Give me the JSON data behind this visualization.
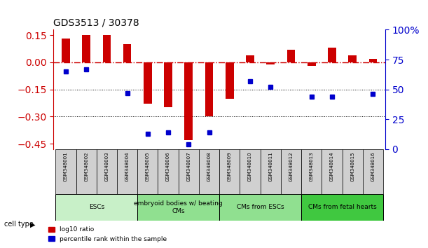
{
  "title": "GDS3513 / 30378",
  "samples": [
    "GSM348001",
    "GSM348002",
    "GSM348003",
    "GSM348004",
    "GSM348005",
    "GSM348006",
    "GSM348007",
    "GSM348008",
    "GSM348009",
    "GSM348010",
    "GSM348011",
    "GSM348012",
    "GSM348013",
    "GSM348014",
    "GSM348015",
    "GSM348016"
  ],
  "log10_ratio": [
    0.13,
    0.15,
    0.15,
    0.1,
    -0.23,
    -0.25,
    -0.43,
    -0.3,
    -0.2,
    0.04,
    -0.01,
    0.07,
    -0.02,
    0.08,
    0.04,
    0.02
  ],
  "percentile_rank": [
    65,
    67,
    null,
    47,
    13,
    14,
    4,
    14,
    null,
    57,
    52,
    null,
    44,
    44,
    null,
    46
  ],
  "cell_type_groups": [
    {
      "label": "ESCs",
      "start": 0,
      "end": 3,
      "color": "#c8f0c8"
    },
    {
      "label": "embryoid bodies w/ beating\nCMs",
      "start": 4,
      "end": 7,
      "color": "#90e090"
    },
    {
      "label": "CMs from ESCs",
      "start": 8,
      "end": 11,
      "color": "#90e090"
    },
    {
      "label": "CMs from fetal hearts",
      "start": 12,
      "end": 15,
      "color": "#40c840"
    }
  ],
  "bar_color": "#cc0000",
  "dot_color": "#0000cc",
  "ylim_left": [
    -0.48,
    0.18
  ],
  "ylim_right": [
    0,
    100
  ],
  "yticks_left": [
    0.15,
    0,
    -0.15,
    -0.3,
    -0.45
  ],
  "yticks_right": [
    100,
    75,
    50,
    25,
    0
  ],
  "hline_y": 0,
  "dotted_lines": [
    -0.15,
    -0.3
  ],
  "legend_items": [
    {
      "label": "log10 ratio",
      "color": "#cc0000"
    },
    {
      "label": "percentile rank within the sample",
      "color": "#0000cc"
    }
  ]
}
